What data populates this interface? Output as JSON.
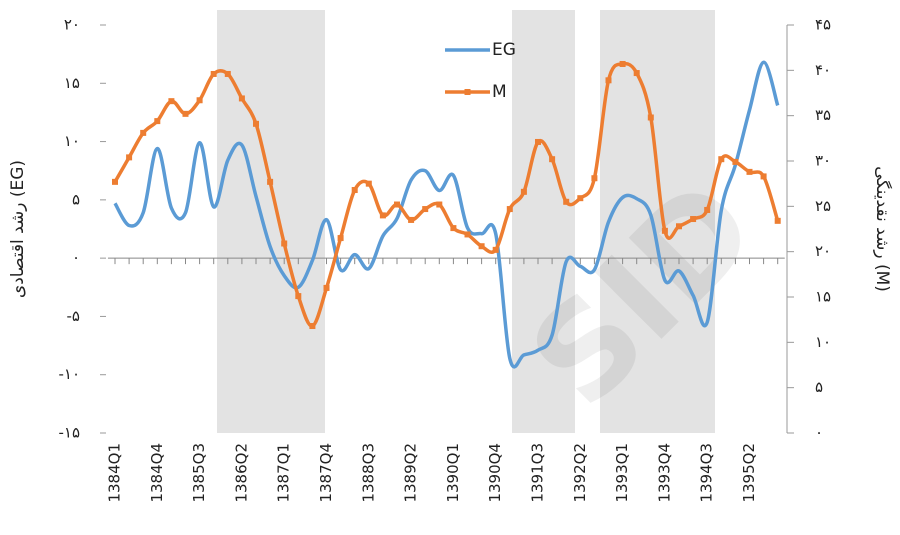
{
  "chart_data": {
    "type": "line",
    "y_label": "رشد اقتصادی (EG)",
    "y2_label": "رشد نقدینگی (M)",
    "watermark": "SID",
    "categories": [
      "1384Q1",
      null,
      null,
      "1384Q4",
      null,
      null,
      "1385Q3",
      null,
      null,
      "1386Q2",
      null,
      null,
      "1387Q1",
      null,
      null,
      "1387Q4",
      null,
      null,
      "1388Q3",
      null,
      null,
      "1389Q2",
      null,
      null,
      "1390Q1",
      null,
      null,
      "1390Q4",
      null,
      null,
      "1391Q3",
      null,
      null,
      "1392Q2",
      null,
      null,
      "1393Q1",
      null,
      null,
      "1393Q4",
      null,
      null,
      "1394Q3",
      null,
      null,
      "1395Q2",
      null,
      null
    ],
    "series": [
      {
        "name": "EG",
        "color": "#5b9bd5",
        "axis": "y",
        "smooth": true,
        "markers": false,
        "values": [
          4.7,
          2.8,
          3.9,
          9.4,
          4.3,
          3.9,
          9.9,
          4.4,
          8.4,
          9.7,
          5.3,
          1.0,
          -1.5,
          -2.5,
          -0.2,
          3.3,
          -1.0,
          0.3,
          -0.9,
          1.9,
          3.4,
          6.7,
          7.5,
          5.8,
          7.1,
          2.6,
          2.1,
          2.1,
          -8.6,
          -8.3,
          -7.9,
          -6.6,
          -0.3,
          -0.7,
          -1.0,
          3.1,
          5.2,
          5.1,
          3.7,
          -1.9,
          -1.1,
          -3.2,
          -5.5,
          4.1,
          8.0,
          12.7,
          16.8,
          13.1
        ]
      },
      {
        "name": "M",
        "color": "#ed7d31",
        "axis": "y2",
        "smooth": true,
        "markers": true,
        "values": [
          27.7,
          30.4,
          33.1,
          34.4,
          36.6,
          35.2,
          36.7,
          39.6,
          39.6,
          36.9,
          34.1,
          27.7,
          20.9,
          15.1,
          11.8,
          16.0,
          21.5,
          26.8,
          27.5,
          24.0,
          25.2,
          23.5,
          24.7,
          25.2,
          22.6,
          21.9,
          20.6,
          20.2,
          24.7,
          26.6,
          32.1,
          30.2,
          25.5,
          25.9,
          28.1,
          38.9,
          40.7,
          39.7,
          34.8,
          22.3,
          22.8,
          23.6,
          24.6,
          30.2,
          29.9,
          28.8,
          28.3,
          23.4
        ]
      }
    ],
    "ylim": [
      -15,
      20
    ],
    "yticks": [
      {
        "value": 20,
        "label": "۲۰"
      },
      {
        "value": 15,
        "label": "۱۵"
      },
      {
        "value": 10,
        "label": "۱۰"
      },
      {
        "value": 5,
        "label": "۵"
      },
      {
        "value": 0,
        "label": "۰"
      },
      {
        "value": -5,
        "label": "-۵"
      },
      {
        "value": -10,
        "label": "-۱۰"
      },
      {
        "value": -15,
        "label": "-۱۵"
      }
    ],
    "y2lim": [
      0,
      45
    ],
    "y2ticks": [
      {
        "value": 45,
        "label": "۴۵"
      },
      {
        "value": 40,
        "label": "۴۰"
      },
      {
        "value": 35,
        "label": "۳۵"
      },
      {
        "value": 30,
        "label": "۳۰"
      },
      {
        "value": 25,
        "label": "۲۵"
      },
      {
        "value": 20,
        "label": "۲۰"
      },
      {
        "value": 15,
        "label": "۱۵"
      },
      {
        "value": 10,
        "label": "۱۰"
      },
      {
        "value": 5,
        "label": "۵"
      },
      {
        "value": 0,
        "label": "۰"
      }
    ],
    "grid": false
  }
}
